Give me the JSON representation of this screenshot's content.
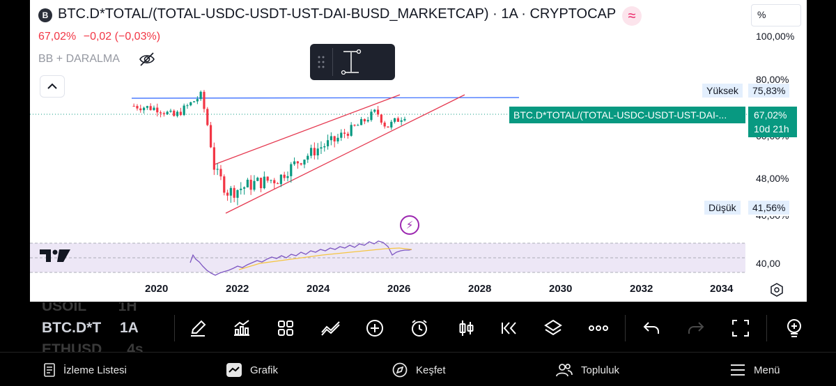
{
  "header": {
    "symbol_badge": "B",
    "title": "BTC.D*TOTAL/(TOTAL-USDC-USDT-UST-DAI-BUSD_MARKETCAP) · 1A · CRYPTOCAP",
    "last_value": "67,02%",
    "change": "−0,02 (−0,03%)",
    "indicator_label": "BB + DARALMA"
  },
  "scale": {
    "mode_button": "%",
    "labels": [
      "100,00%",
      "80,00%",
      "60,00%",
      "48,00%",
      "40,00%",
      "40,00"
    ],
    "high_label": "Yüksek",
    "high_value": "75,83%",
    "low_label": "Düşük",
    "low_value": "41,56%",
    "current_value": "67,02%",
    "countdown": "10d 21h",
    "series_tag": "BTC.D*TOTAL/(TOTAL-USDC-USDT-UST-DAI-..."
  },
  "time_axis": {
    "years": [
      "2020",
      "2022",
      "2024",
      "2026",
      "2028",
      "2030",
      "2032",
      "2034"
    ]
  },
  "chart_data": {
    "type": "candlestick",
    "title": "BTC.D*TOTAL/(TOTAL-USDC-USDT-UST-DAI-BUSD_MARKETCAP)",
    "interval": "1A",
    "y_scale": "percent",
    "approx_close_path": [
      {
        "date": "2019-06",
        "value": 70
      },
      {
        "date": "2020-01",
        "value": 69
      },
      {
        "date": "2020-06",
        "value": 66
      },
      {
        "date": "2020-12",
        "value": 72
      },
      {
        "date": "2021-02",
        "value": 74
      },
      {
        "date": "2021-06",
        "value": 50
      },
      {
        "date": "2021-10",
        "value": 45
      },
      {
        "date": "2022-06",
        "value": 47
      },
      {
        "date": "2023-01",
        "value": 48
      },
      {
        "date": "2023-06",
        "value": 52
      },
      {
        "date": "2024-01",
        "value": 56
      },
      {
        "date": "2024-06",
        "value": 58
      },
      {
        "date": "2025-01",
        "value": 63
      },
      {
        "date": "2025-06",
        "value": 68
      },
      {
        "date": "2025-09",
        "value": 62
      },
      {
        "date": "2026-03",
        "value": 67.02
      }
    ],
    "high": 75.83,
    "low": 41.56,
    "last": 67.02
  },
  "toolbar": {
    "watch_bg_1": "USOIL",
    "watch_bg_1_tf": "1H",
    "current_symbol": "BTC.D*T",
    "current_tf": "1A",
    "watch_bg_2": "ETHUSD",
    "watch_bg_2_tf": "4s"
  },
  "bottom_nav": {
    "watchlist": "İzleme Listesi",
    "chart": "Grafik",
    "explore": "Keşfet",
    "community": "Topluluk",
    "menu": "Menü"
  },
  "colors": {
    "accent_green": "#089981",
    "down_red": "#f23645",
    "up_green": "#089981",
    "trend_blue": "#2962ff",
    "channel_red": "#e53950",
    "rsi_purple": "#7e57c2",
    "rsi_ma_yellow": "#f5c542"
  }
}
